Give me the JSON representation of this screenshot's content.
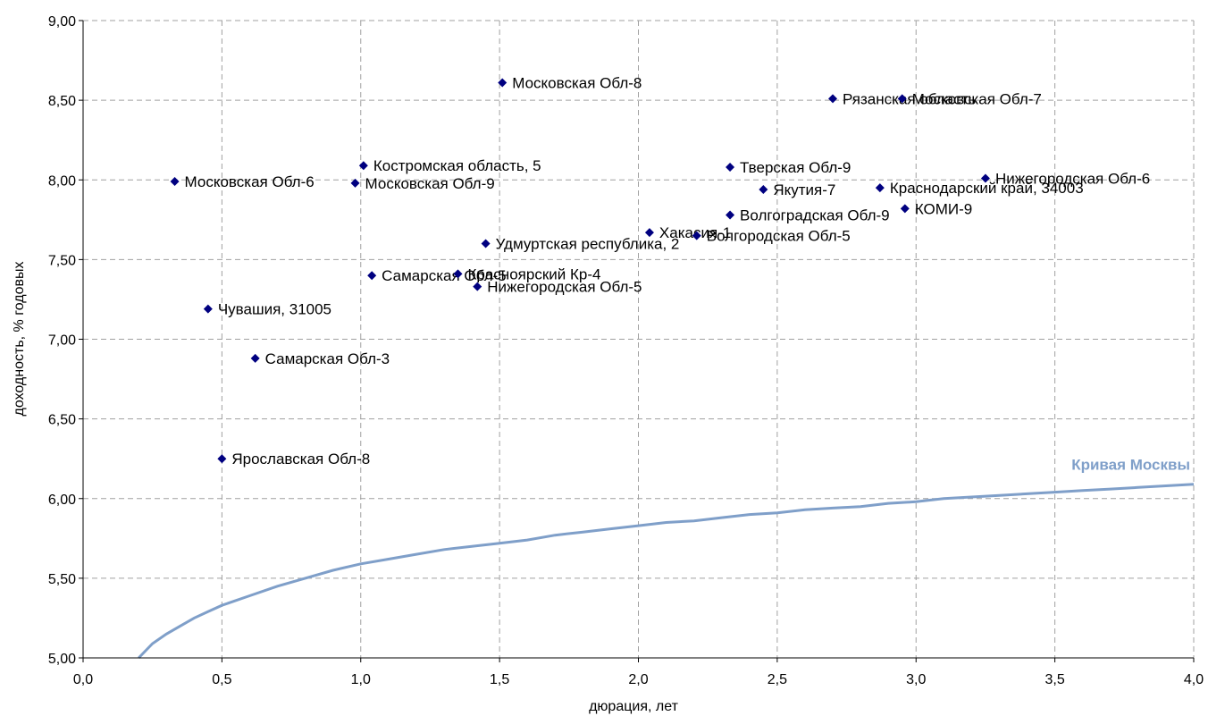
{
  "chart_data": {
    "type": "scatter",
    "xlabel": "дюрация, лет",
    "ylabel": "доходность, % годовых",
    "xlim": [
      0.0,
      4.0
    ],
    "ylim": [
      5.0,
      9.0
    ],
    "xticks": [
      0.0,
      0.5,
      1.0,
      1.5,
      2.0,
      2.5,
      3.0,
      3.5,
      4.0
    ],
    "yticks": [
      5.0,
      5.5,
      6.0,
      6.5,
      7.0,
      7.5,
      8.0,
      8.5,
      9.0
    ],
    "xtick_labels": [
      "0,0",
      "0,5",
      "1,0",
      "1,5",
      "2,0",
      "2,5",
      "3,0",
      "3,5",
      "4,0"
    ],
    "ytick_labels": [
      "5,00",
      "5,50",
      "6,00",
      "6,50",
      "7,00",
      "7,50",
      "8,00",
      "8,50",
      "9,00"
    ],
    "grid": true,
    "marker_color": "#000080",
    "points": [
      {
        "label": "Московская Обл-8",
        "x": 1.51,
        "y": 8.61
      },
      {
        "label": "Рязанская область",
        "x": 2.7,
        "y": 8.51
      },
      {
        "label": "Московская Обл-7",
        "x": 2.95,
        "y": 8.51
      },
      {
        "label": "Костромская область, 5",
        "x": 1.01,
        "y": 8.09
      },
      {
        "label": "Тверская Обл-9",
        "x": 2.33,
        "y": 8.08
      },
      {
        "label": "Нижегородская Обл-6",
        "x": 3.25,
        "y": 8.01
      },
      {
        "label": "Московская Обл-6",
        "x": 0.33,
        "y": 7.99
      },
      {
        "label": "Московская Обл-9",
        "x": 0.98,
        "y": 7.98
      },
      {
        "label": "Краснодарский край, 34003",
        "x": 2.87,
        "y": 7.95
      },
      {
        "label": "Якутия-7",
        "x": 2.45,
        "y": 7.94
      },
      {
        "label": "КОМИ-9",
        "x": 2.96,
        "y": 7.82
      },
      {
        "label": "Волгоградская Обл-9",
        "x": 2.33,
        "y": 7.78
      },
      {
        "label": "Хакасия-1",
        "x": 2.04,
        "y": 7.67
      },
      {
        "label": "Волгородская Обл-5",
        "x": 2.21,
        "y": 7.65
      },
      {
        "label": "Удмуртская республика, 2",
        "x": 1.45,
        "y": 7.6
      },
      {
        "label": "Самарская Обл-5",
        "x": 1.04,
        "y": 7.4
      },
      {
        "label": "Красноярский Кр-4",
        "x": 1.35,
        "y": 7.41
      },
      {
        "label": "Нижегородская Обл-5",
        "x": 1.42,
        "y": 7.33
      },
      {
        "label": "Чувашия, 31005",
        "x": 0.45,
        "y": 7.19
      },
      {
        "label": "Самарская Обл-3",
        "x": 0.62,
        "y": 6.88
      },
      {
        "label": "Ярославская Обл-8",
        "x": 0.5,
        "y": 6.25
      }
    ],
    "curve": {
      "name": "Кривая Москвы",
      "color": "#7f9fc9",
      "x": [
        0.2,
        0.25,
        0.3,
        0.35,
        0.4,
        0.45,
        0.5,
        0.6,
        0.7,
        0.8,
        0.9,
        1.0,
        1.1,
        1.2,
        1.3,
        1.4,
        1.5,
        1.6,
        1.7,
        1.8,
        1.9,
        2.0,
        2.1,
        2.2,
        2.3,
        2.4,
        2.5,
        2.6,
        2.7,
        2.8,
        2.9,
        3.0,
        3.1,
        3.2,
        3.3,
        3.4,
        3.5,
        3.6,
        3.7,
        3.8,
        3.9,
        4.0
      ],
      "y": [
        5.0,
        5.09,
        5.15,
        5.2,
        5.25,
        5.29,
        5.33,
        5.39,
        5.45,
        5.5,
        5.55,
        5.59,
        5.62,
        5.65,
        5.68,
        5.7,
        5.72,
        5.74,
        5.77,
        5.79,
        5.81,
        5.83,
        5.85,
        5.86,
        5.88,
        5.9,
        5.91,
        5.93,
        5.94,
        5.95,
        5.97,
        5.98,
        6.0,
        6.01,
        6.02,
        6.03,
        6.04,
        6.05,
        6.06,
        6.07,
        6.08,
        6.09
      ]
    }
  }
}
